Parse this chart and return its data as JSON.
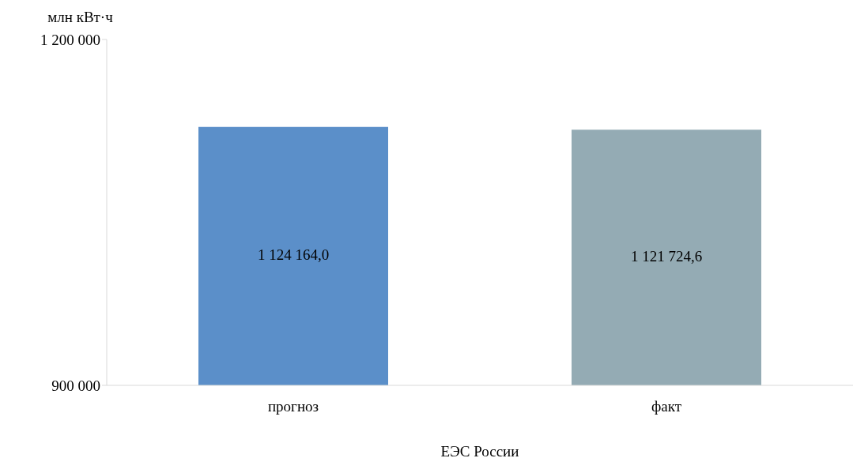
{
  "chart_data": {
    "type": "bar",
    "ylabel": "млн кВт·ч",
    "xlabel": "ЕЭС России",
    "categories": [
      "прогноз",
      "факт"
    ],
    "values": [
      1124164.0,
      1121724.6
    ],
    "value_labels": [
      "1 124 164,0",
      "1 121 724,6"
    ],
    "colors": [
      "#5b8fc9",
      "#94abb4"
    ],
    "ylim": [
      900000,
      1200000
    ],
    "yticks": [
      {
        "value": 900000,
        "label": "900 000"
      },
      {
        "value": 1200000,
        "label": "1 200 000"
      }
    ],
    "grid": false,
    "legend": false
  }
}
